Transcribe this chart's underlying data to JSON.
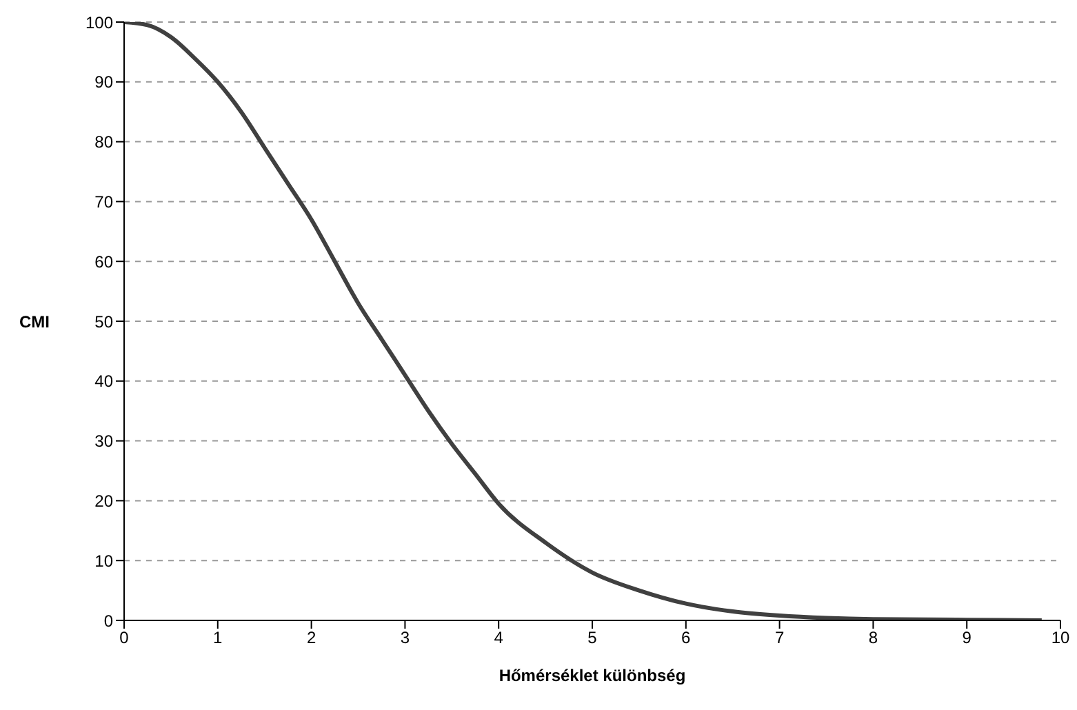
{
  "chart_data": {
    "type": "line",
    "xlabel": "Hőmérséklet különbség",
    "ylabel": "CMI",
    "x": [
      0,
      0.25,
      0.5,
      0.75,
      1,
      1.25,
      1.5,
      1.75,
      2,
      2.25,
      2.5,
      2.75,
      3,
      3.25,
      3.5,
      3.75,
      4,
      4.5,
      5,
      5.5,
      6,
      6.5,
      7,
      7.5,
      8,
      9,
      9.8
    ],
    "series": [
      {
        "color": "#404040",
        "values": [
          100,
          99.5,
          97.5,
          94,
          90,
          85,
          79,
          73,
          67,
          60,
          53,
          47,
          41,
          35,
          29.5,
          24.5,
          19.5,
          13,
          8,
          5,
          2.8,
          1.5,
          0.8,
          0.4,
          0.2,
          0.1,
          0
        ]
      }
    ],
    "xlim": [
      0,
      10
    ],
    "xticks": [
      0,
      1,
      2,
      3,
      4,
      5,
      6,
      7,
      8,
      9,
      10
    ],
    "ylim": [
      0,
      100
    ],
    "yticks": [
      0,
      10,
      20,
      30,
      40,
      50,
      60,
      70,
      80,
      90,
      100
    ],
    "grid": "y",
    "legend": false,
    "marker": "none",
    "line_style": "solid"
  }
}
